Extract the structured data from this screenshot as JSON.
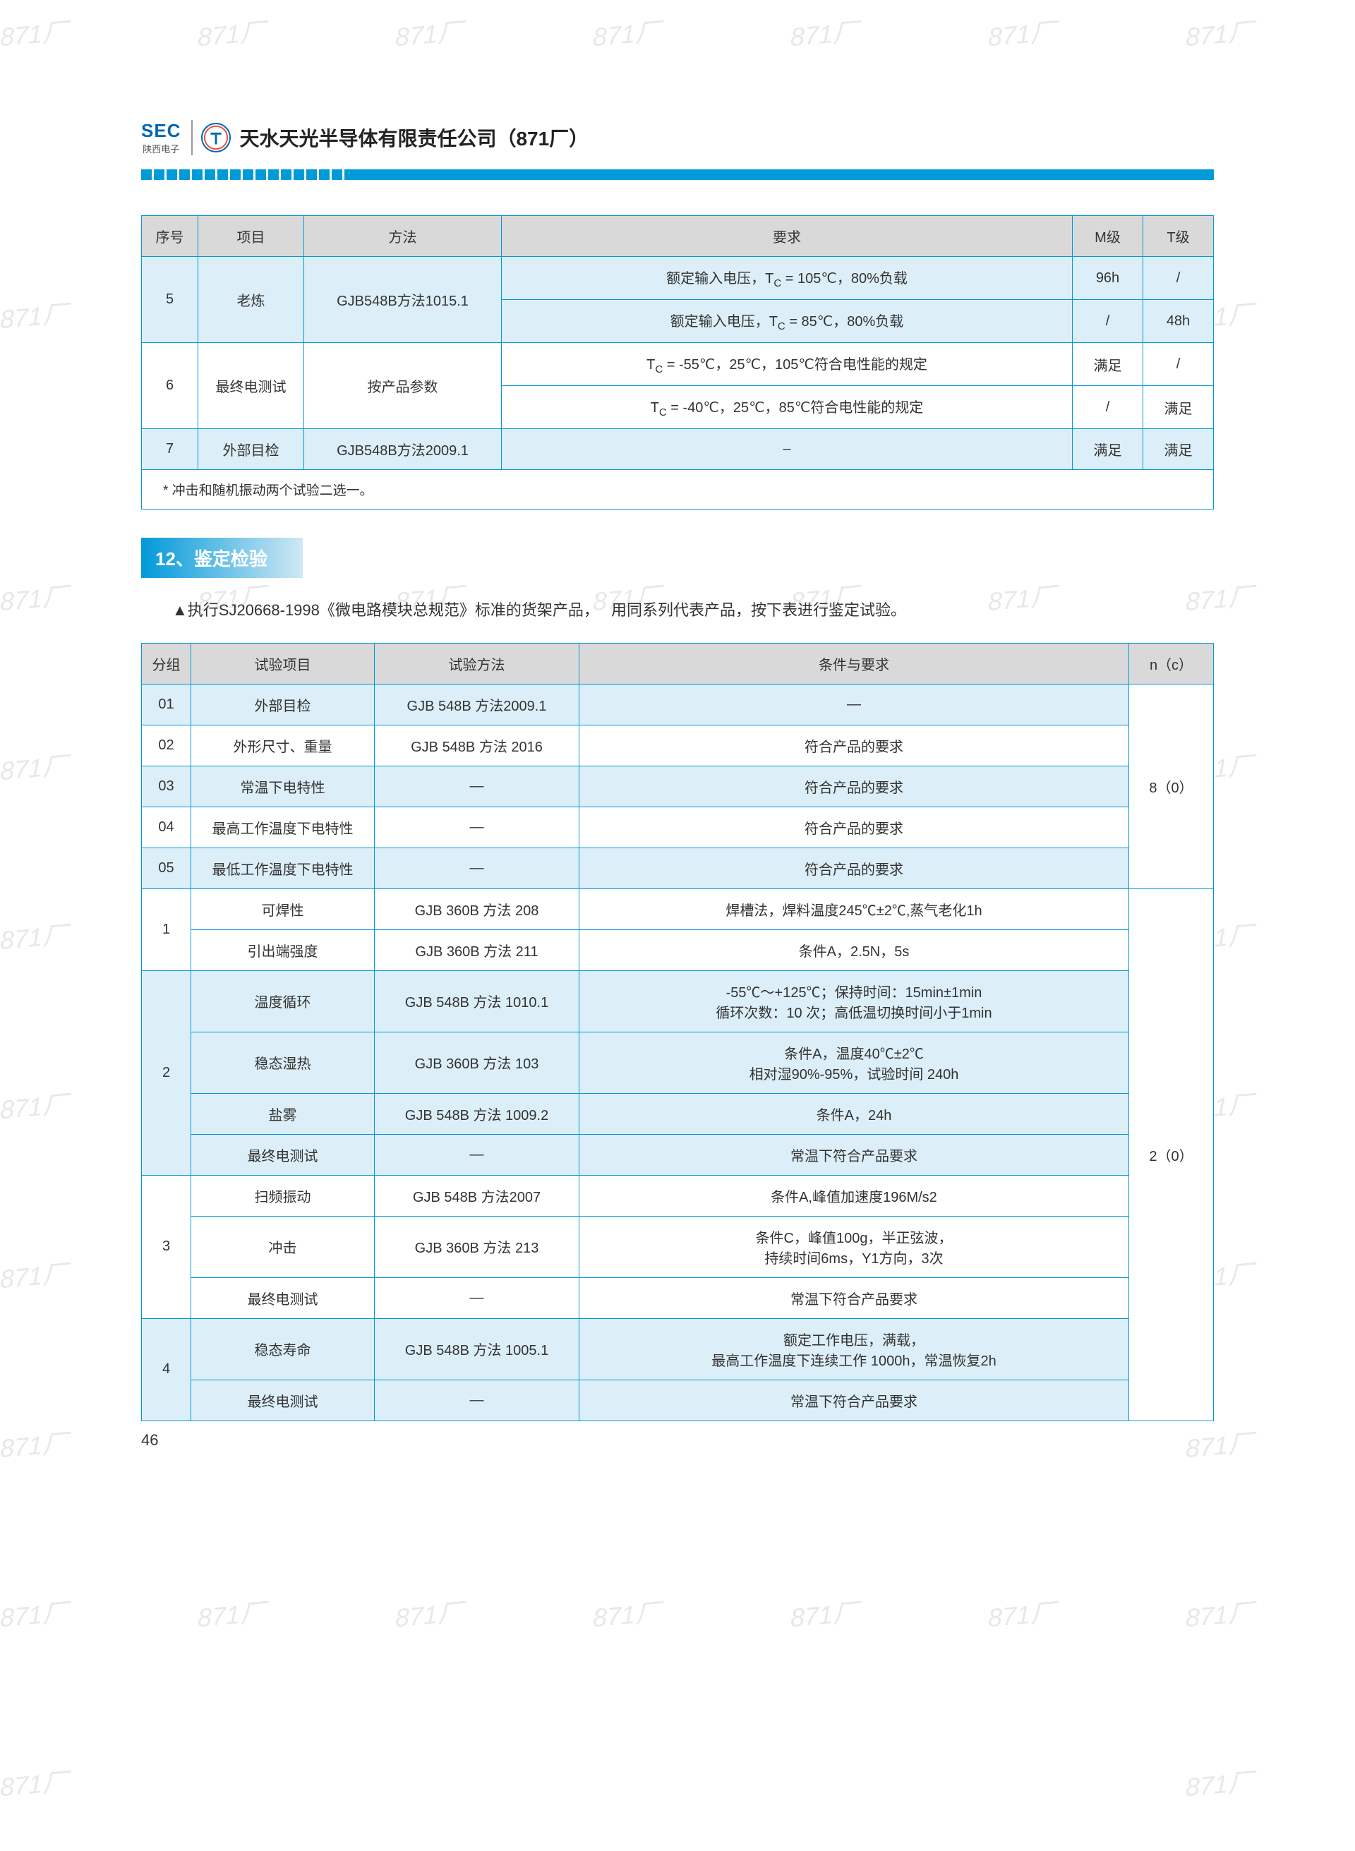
{
  "header": {
    "sec_top": "SEC",
    "sec_bot": "陕西电子",
    "tg_icon": "T",
    "company": "天水天光半导体有限责任公司（871厂）"
  },
  "watermark_text": "871厂",
  "table1": {
    "headers": [
      "序号",
      "项目",
      "方法",
      "要求",
      "M级",
      "T级"
    ],
    "rows": [
      {
        "cells": [
          "5",
          "老炼",
          "GJB548B方法1015.1",
          "额定输入电压，T<sub>C</sub> = 105℃，80%负载",
          "96h",
          "/"
        ],
        "span": {
          "c0": 2,
          "c1": 2,
          "c2": 2
        },
        "class": "blue-row",
        "sub": true
      },
      {
        "cells": [
          "额定输入电压，T<sub>C</sub> = 85℃，80%负载",
          "/",
          "48h"
        ],
        "class": "blue-row",
        "sub": true
      },
      {
        "cells": [
          "6",
          "最终电测试",
          "按产品参数",
          "T<sub>C</sub> = -55℃，25℃，105℃符合电性能的规定",
          "满足",
          "/"
        ],
        "span": {
          "c0": 2,
          "c1": 2,
          "c2": 2
        },
        "class": "white-row",
        "sub": true
      },
      {
        "cells": [
          "T<sub>C</sub> = -40℃，25℃，85℃符合电性能的规定",
          "/",
          "满足"
        ],
        "class": "white-row",
        "sub": true
      },
      {
        "cells": [
          "7",
          "外部目检",
          "GJB548B方法2009.1",
          "–",
          "满足",
          "满足"
        ],
        "class": "blue-row"
      }
    ],
    "note": "* 冲击和随机振动两个试验二选一。"
  },
  "section_heading": "12、鉴定检验",
  "body_text": "▲执行SJ20668-1998《微电路模块总规范》标准的货架产品，　 用同系列代表产品，按下表进行鉴定试验。",
  "table2": {
    "headers": [
      "分组",
      "试验项目",
      "试验方法",
      "条件与要求",
      "n（c）"
    ],
    "col_widths": [
      "70px",
      "260px",
      "280px",
      "auto",
      "120px"
    ]
  },
  "t2rows": {
    "r01_g": "01",
    "r01_i": "外部目检",
    "r01_m": "GJB 548B 方法2009.1",
    "r01_c": "—",
    "r02_g": "02",
    "r02_i": "外形尺寸、重量",
    "r02_m": "GJB 548B 方法 2016",
    "r02_c": "符合产品的要求",
    "r03_g": "03",
    "r03_i": "常温下电特性",
    "r03_m": "—",
    "r03_c": "符合产品的要求",
    "r04_g": "04",
    "r04_i": "最高工作温度下电特性",
    "r04_m": "—",
    "r04_c": "符合产品的要求",
    "r05_g": "05",
    "r05_i": "最低工作温度下电特性",
    "r05_m": "—",
    "r05_c": "符合产品的要求",
    "n1": "8（0）",
    "g1": "1",
    "g1a_i": "可焊性",
    "g1a_m": "GJB 360B 方法 208",
    "g1a_c": "焊槽法，焊料温度245℃±2℃,蒸气老化1h",
    "g1b_i": "引出端强度",
    "g1b_m": "GJB 360B 方法 211",
    "g1b_c": "条件A，2.5N，5s",
    "g2": "2",
    "g2a_i": "温度循环",
    "g2a_m": "GJB 548B 方法 1010.1",
    "g2a_c": "-55℃～+125℃；保持时间：15min±1min\n循环次数：10 次；高低温切换时间小于1min",
    "g2b_i": "稳态湿热",
    "g2b_m": "GJB 360B 方法 103",
    "g2b_c": "条件A，温度40℃±2℃\n相对湿90%-95%，试验时间 240h",
    "g2c_i": "盐雾",
    "g2c_m": "GJB 548B 方法 1009.2",
    "g2c_c": "条件A，24h",
    "g2d_i": "最终电测试",
    "g2d_m": "—",
    "g2d_c": "常温下符合产品要求",
    "g3": "3",
    "g3a_i": "扫频振动",
    "g3a_m": "GJB 548B 方法2007",
    "g3a_c": "条件A,峰值加速度196M/s2",
    "g3b_i": "冲击",
    "g3b_m": "GJB 360B 方法 213",
    "g3b_c": "条件C，峰值100g，半正弦波，\n持续时间6ms，Y1方向，3次",
    "g3c_i": "最终电测试",
    "g3c_m": "—",
    "g3c_c": "常温下符合产品要求",
    "g4": "4",
    "g4a_i": "稳态寿命",
    "g4a_m": "GJB 548B 方法 1005.1",
    "g4a_c": "额定工作电压，满载，\n最高工作温度下连续工作 1000h，常温恢复2h",
    "g4b_i": "最终电测试",
    "g4b_m": "—",
    "g4b_c": "常温下符合产品要求",
    "n2": "2（0）"
  },
  "page_num": "46",
  "colors": {
    "accent": "#0099d9",
    "header_bg": "#d9d9d9",
    "blue_row": "#dceef7"
  }
}
